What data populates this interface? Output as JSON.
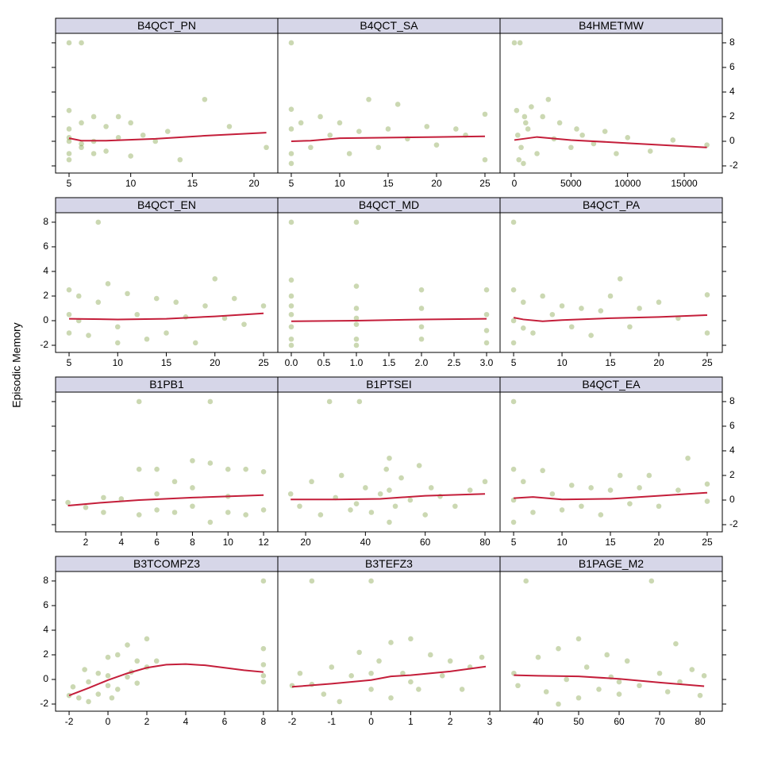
{
  "ylabel": "Episodic Memory",
  "chart_data": [
    {
      "type": "scatter",
      "title": "B4QCT_PN",
      "color": "#6b8e23",
      "ylabel_side": "right",
      "x": [
        5,
        5,
        5,
        5,
        5,
        5,
        6,
        6,
        6,
        7,
        7,
        7,
        8,
        8,
        9,
        9,
        10,
        10,
        11,
        12,
        13,
        14,
        16,
        18,
        21,
        5,
        6
      ],
      "values": [
        8,
        2.5,
        1,
        0,
        -1,
        -1.5,
        8,
        1.5,
        -0.5,
        2,
        0,
        -1,
        1.2,
        -0.8,
        2,
        0.3,
        1.5,
        -1.2,
        0.5,
        0,
        0.8,
        -1.5,
        3.4,
        1.2,
        -0.5,
        0.3,
        -0.2
      ],
      "smooth": {
        "color": "#c41e3a",
        "x": [
          5,
          6,
          8,
          12,
          16,
          21
        ],
        "values": [
          0.25,
          0.05,
          0.05,
          0.2,
          0.45,
          0.7
        ]
      },
      "xlim": [
        3.905,
        21.93
      ],
      "xticks": [
        5,
        10,
        15,
        20
      ],
      "ylim": [
        -2.58,
        8.77
      ],
      "yticks": [
        -2,
        0,
        2,
        4,
        6,
        8
      ]
    },
    {
      "type": "scatter",
      "title": "B4QCT_SA",
      "color": "#6b8e23",
      "x": [
        5,
        5,
        5,
        5,
        5,
        6,
        7,
        8,
        9,
        10,
        11,
        12,
        13,
        14,
        15,
        16,
        17,
        19,
        20,
        22,
        23,
        25,
        25
      ],
      "values": [
        8,
        2.6,
        1,
        -1,
        -1.8,
        1.5,
        -0.5,
        2,
        0.5,
        1.5,
        -1,
        0.8,
        3.4,
        -0.5,
        1,
        3,
        0.2,
        1.2,
        -0.3,
        1,
        0.5,
        2.2,
        -1.5
      ],
      "smooth": {
        "color": "#c41e3a",
        "x": [
          5,
          7,
          10,
          15,
          20,
          25
        ],
        "values": [
          0,
          0.05,
          0.25,
          0.3,
          0.35,
          0.4
        ]
      },
      "xlim": [
        3.61,
        26.56
      ],
      "xticks": [
        5,
        10,
        15,
        20,
        25
      ],
      "ylim": [
        -2.58,
        8.77
      ],
      "yticks": [
        -2,
        0,
        2,
        4,
        6,
        8
      ]
    },
    {
      "type": "scatter",
      "title": "B4HMETMW",
      "color": "#6b8e23",
      "x": [
        0,
        200,
        500,
        800,
        1000,
        1500,
        2000,
        300,
        600,
        1200,
        2500,
        3000,
        3500,
        4000,
        5000,
        5500,
        6000,
        7000,
        8000,
        9000,
        10000,
        12000,
        14000,
        17000,
        400,
        900
      ],
      "values": [
        8,
        2.5,
        8,
        -1.8,
        1.5,
        2.8,
        -1,
        0.5,
        -0.5,
        1,
        2,
        3.4,
        0.2,
        1.5,
        -0.5,
        1,
        0.5,
        -0.2,
        0.8,
        -1,
        0.3,
        -0.8,
        0.1,
        -0.3,
        -1.5,
        2
      ],
      "smooth": {
        "color": "#c41e3a",
        "x": [
          0,
          2000,
          5000,
          10000,
          17000
        ],
        "values": [
          0.1,
          0.35,
          0.1,
          -0.15,
          -0.5
        ]
      },
      "xlim": [
        -1262,
        18360
      ],
      "xticks": [
        0,
        5000,
        10000,
        15000
      ],
      "ylim": [
        -2.58,
        8.77
      ],
      "yticks": [
        -2,
        0,
        2,
        4,
        6,
        8
      ]
    },
    {
      "type": "scatter",
      "title": "B4QCT_EN",
      "color": "#6b8e23",
      "ylabel_side": "left",
      "x": [
        5,
        5,
        5,
        6,
        7,
        8,
        8,
        9,
        10,
        11,
        12,
        13,
        14,
        15,
        16,
        17,
        18,
        19,
        20,
        21,
        22,
        23,
        25,
        6,
        10
      ],
      "values": [
        2.5,
        -1,
        0.5,
        2,
        -1.2,
        8,
        1.5,
        3,
        -0.5,
        2.2,
        0.5,
        -1.5,
        1.8,
        -1,
        1.5,
        0.3,
        -1.8,
        1.2,
        3.4,
        0.2,
        1.8,
        -0.3,
        1.2,
        0,
        -1.8
      ],
      "smooth": {
        "color": "#c41e3a",
        "x": [
          5,
          10,
          15,
          20,
          25
        ],
        "values": [
          0.15,
          0.1,
          0.15,
          0.35,
          0.6
        ]
      },
      "xlim": [
        3.61,
        26.47
      ],
      "xticks": [
        5,
        10,
        15,
        20,
        25
      ],
      "ylim": [
        -2.58,
        8.77
      ],
      "yticks": [
        -2,
        0,
        2,
        4,
        6,
        8
      ]
    },
    {
      "type": "scatter",
      "title": "B4QCT_MD",
      "color": "#6b8e23",
      "x": [
        0,
        0,
        0,
        0,
        0,
        0,
        0,
        1,
        1,
        1,
        1,
        1,
        1,
        2,
        2,
        2,
        2,
        3,
        3,
        3,
        3,
        0,
        1
      ],
      "values": [
        8,
        3.3,
        2,
        0.5,
        -0.5,
        -1.5,
        -2,
        8,
        2.8,
        1,
        -0.3,
        -1.5,
        -2,
        2.5,
        1,
        -0.5,
        -1.5,
        2.5,
        0.5,
        -0.8,
        -1.8,
        1.2,
        0.2
      ],
      "smooth": {
        "color": "#c41e3a",
        "x": [
          0,
          1,
          2,
          3
        ],
        "values": [
          -0.05,
          0,
          0.1,
          0.15
        ]
      },
      "xlim": [
        -0.207,
        3.207
      ],
      "xticks": [
        {
          "value": 0,
          "label": "0.0"
        },
        {
          "value": 0.5,
          "label": "0.5"
        },
        {
          "value": 1,
          "label": "1.0"
        },
        {
          "value": 1.5,
          "label": "1.5"
        },
        {
          "value": 2,
          "label": "2.0"
        },
        {
          "value": 2.5,
          "label": "2.5"
        },
        {
          "value": 3,
          "label": "3.0"
        }
      ],
      "ylim": [
        -2.58,
        8.77
      ],
      "yticks": [
        -2,
        0,
        2,
        4,
        6,
        8
      ]
    },
    {
      "type": "scatter",
      "title": "B4QCT_PA",
      "color": "#6b8e23",
      "x": [
        5,
        5,
        5,
        5,
        6,
        7,
        8,
        9,
        10,
        11,
        12,
        13,
        14,
        15,
        16,
        17,
        18,
        20,
        22,
        25,
        25,
        6
      ],
      "values": [
        8,
        2.5,
        0,
        -1.8,
        1.5,
        -1,
        2,
        0.5,
        1.2,
        -0.5,
        1,
        -1.2,
        0.8,
        2,
        3.4,
        -0.5,
        1,
        1.5,
        0.2,
        2.1,
        -1,
        -0.6
      ],
      "smooth": {
        "color": "#c41e3a",
        "x": [
          5,
          6,
          8,
          10,
          15,
          20,
          25
        ],
        "values": [
          0.25,
          0.1,
          -0.05,
          0.05,
          0.2,
          0.3,
          0.45
        ]
      },
      "xlim": [
        3.6,
        26.56
      ],
      "xticks": [
        5,
        10,
        15,
        20,
        25
      ],
      "ylim": [
        -2.58,
        8.77
      ],
      "yticks": [
        -2,
        0,
        2,
        4,
        6,
        8
      ]
    },
    {
      "type": "scatter",
      "title": "B1PB1",
      "color": "#6b8e23",
      "ylabel_side": "right",
      "x": [
        1,
        3,
        3,
        4,
        5,
        5,
        5,
        6,
        6,
        7,
        7,
        8,
        8,
        9,
        9,
        9,
        10,
        10,
        11,
        11,
        12,
        12,
        6,
        8,
        10,
        2
      ],
      "values": [
        -0.2,
        -1,
        0.2,
        0.1,
        8,
        2.5,
        -1.2,
        2.5,
        -0.8,
        1.5,
        -1,
        3.2,
        -0.5,
        8,
        3,
        -1.8,
        2.5,
        -1,
        2.5,
        -1.2,
        2.3,
        -0.8,
        0.5,
        1,
        0.3,
        -0.6
      ],
      "smooth": {
        "color": "#c41e3a",
        "x": [
          1,
          3,
          5,
          8,
          12
        ],
        "values": [
          -0.45,
          -0.2,
          0,
          0.2,
          0.4
        ]
      },
      "xlim": [
        0.304,
        12.8
      ],
      "xticks": [
        2,
        4,
        6,
        8,
        10,
        12
      ],
      "ylim": [
        -2.58,
        8.77
      ],
      "yticks": [
        -2,
        0,
        2,
        4,
        6,
        8
      ]
    },
    {
      "type": "scatter",
      "title": "B1PTSEI",
      "color": "#6b8e23",
      "x": [
        15,
        18,
        22,
        25,
        28,
        30,
        32,
        35,
        38,
        40,
        42,
        45,
        47,
        48,
        48,
        50,
        52,
        55,
        58,
        60,
        62,
        65,
        70,
        75,
        80,
        37,
        48
      ],
      "values": [
        0.5,
        -0.5,
        1.5,
        -1.2,
        8,
        0.2,
        2,
        -0.8,
        8,
        1,
        -1,
        0.5,
        2.5,
        3.4,
        -1.8,
        -0.5,
        1.8,
        0,
        2.8,
        -1.2,
        1,
        0.3,
        -0.5,
        0.8,
        1.5,
        -0.3,
        0.8
      ],
      "smooth": {
        "color": "#c41e3a",
        "x": [
          15,
          30,
          45,
          60,
          80
        ],
        "values": [
          0.05,
          0.05,
          0.1,
          0.35,
          0.5
        ]
      },
      "xlim": [
        10.7,
        85.04
      ],
      "xticks": [
        20,
        40,
        60,
        80
      ],
      "ylim": [
        -2.58,
        8.77
      ],
      "yticks": [
        -2,
        0,
        2,
        4,
        6,
        8
      ]
    },
    {
      "type": "scatter",
      "title": "B4QCT_EA",
      "color": "#6b8e23",
      "x": [
        5,
        5,
        5,
        5,
        6,
        7,
        8,
        9,
        10,
        11,
        12,
        13,
        14,
        15,
        16,
        17,
        18,
        19,
        20,
        22,
        23,
        25,
        25
      ],
      "values": [
        8,
        2.5,
        0,
        -1.8,
        1.5,
        -1,
        2.4,
        0.5,
        -0.8,
        1.2,
        -0.5,
        1,
        -1.2,
        0.8,
        2,
        -0.3,
        1,
        2,
        -0.5,
        0.8,
        3.4,
        1.3,
        -0.1
      ],
      "smooth": {
        "color": "#c41e3a",
        "x": [
          5,
          7,
          10,
          15,
          20,
          25
        ],
        "values": [
          0.15,
          0.25,
          0.05,
          0.1,
          0.35,
          0.6
        ]
      },
      "xlim": [
        3.6,
        26.56
      ],
      "xticks": [
        5,
        10,
        15,
        20,
        25
      ],
      "ylim": [
        -2.58,
        8.77
      ],
      "yticks": [
        -2,
        0,
        2,
        4,
        6,
        8
      ]
    },
    {
      "type": "scatter",
      "title": "B3TCOMPZ3",
      "color": "#6b8e23",
      "ylabel_side": "left",
      "x": [
        -2,
        -1.8,
        -1.5,
        -1,
        -1,
        -0.5,
        -0.5,
        0,
        0,
        0,
        0.5,
        0.5,
        1,
        1,
        1.5,
        1.5,
        2,
        2,
        2.5,
        -1.2,
        0.2,
        1.2,
        8,
        8,
        8,
        8,
        8
      ],
      "values": [
        -1.3,
        -0.6,
        -1.5,
        -0.2,
        -1.8,
        0.5,
        -1.2,
        1.8,
        -0.5,
        0.3,
        2,
        -0.8,
        2.8,
        0.2,
        1.5,
        -0.3,
        3.3,
        1,
        1.5,
        0.8,
        -1.5,
        0.6,
        8,
        2.5,
        1.2,
        0.3,
        -0.2
      ],
      "smooth": {
        "color": "#c41e3a",
        "x": [
          -2,
          -1,
          0,
          1,
          2,
          3,
          4,
          5,
          6,
          7,
          8
        ],
        "values": [
          -1.3,
          -0.7,
          -0.05,
          0.5,
          0.95,
          1.2,
          1.25,
          1.15,
          0.95,
          0.75,
          0.6
        ]
      },
      "xlim": [
        -2.697,
        8.74
      ],
      "xticks": [
        -2,
        0,
        2,
        4,
        6,
        8
      ],
      "ylim": [
        -2.58,
        8.77
      ],
      "yticks": [
        -2,
        0,
        2,
        4,
        6,
        8
      ]
    },
    {
      "type": "scatter",
      "title": "B3TEFZ3",
      "color": "#6b8e23",
      "x": [
        -2,
        -1.8,
        -1.5,
        -1.2,
        -1,
        -0.8,
        -0.5,
        -0.3,
        0,
        0,
        0.2,
        0.5,
        0.5,
        0.8,
        1,
        1.2,
        1.5,
        1.8,
        2,
        2.3,
        2.5,
        2.8,
        -1.5,
        0,
        1
      ],
      "values": [
        -0.5,
        0.5,
        8,
        -1.2,
        1,
        -1.8,
        0.3,
        2.2,
        8,
        -0.8,
        1.5,
        3,
        -1.5,
        0.5,
        3.3,
        -0.8,
        2,
        0.3,
        1.5,
        -0.8,
        1,
        1.8,
        -0.4,
        0.5,
        -0.2
      ],
      "smooth": {
        "color": "#c41e3a",
        "x": [
          -2,
          -1,
          0,
          0.5,
          1,
          2,
          2.9
        ],
        "values": [
          -0.6,
          -0.35,
          -0.05,
          0.25,
          0.35,
          0.65,
          1.05
        ]
      },
      "xlim": [
        -2.361,
        3.261
      ],
      "xticks": [
        -2,
        -1,
        0,
        1,
        2,
        3
      ],
      "ylim": [
        -2.58,
        8.77
      ],
      "yticks": [
        -2,
        0,
        2,
        4,
        6,
        8
      ]
    },
    {
      "type": "scatter",
      "title": "B1PAGE_M2",
      "color": "#6b8e23",
      "x": [
        34,
        35,
        37,
        40,
        42,
        45,
        47,
        50,
        50,
        52,
        55,
        57,
        58,
        60,
        62,
        65,
        68,
        70,
        72,
        74,
        75,
        78,
        80,
        81,
        45,
        60
      ],
      "values": [
        0.5,
        -0.5,
        8,
        1.8,
        -1,
        2.5,
        0,
        3.3,
        -1.5,
        1,
        -0.8,
        2,
        0.2,
        -1.2,
        1.5,
        -0.5,
        8,
        0.5,
        -1,
        2.9,
        -0.2,
        0.8,
        -1.3,
        0.3,
        -2,
        -0.2
      ],
      "smooth": {
        "color": "#c41e3a",
        "x": [
          34,
          40,
          50,
          60,
          70,
          81
        ],
        "values": [
          0.35,
          0.3,
          0.25,
          0.05,
          -0.25,
          -0.55
        ]
      },
      "xlim": [
        30.59,
        85.49
      ],
      "xticks": [
        40,
        50,
        60,
        70,
        80
      ],
      "ylim": [
        -2.58,
        8.77
      ],
      "yticks": [
        -2,
        0,
        2,
        4,
        6,
        8
      ]
    }
  ]
}
